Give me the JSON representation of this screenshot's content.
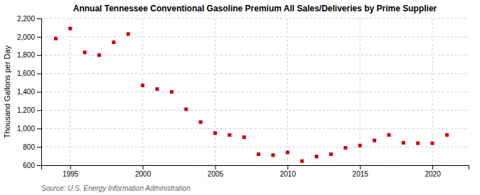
{
  "chart_data": {
    "type": "scatter",
    "title": "Annual Tennessee Conventional Gasoline Premium All Sales/Deliveries by Prime Supplier",
    "ylabel": "Thousand Gallons per Day",
    "source": "Source: U.S. Energy Information Administration",
    "x": [
      1994,
      1995,
      1996,
      1997,
      1998,
      1999,
      2000,
      2001,
      2002,
      2003,
      2004,
      2005,
      2006,
      2007,
      2008,
      2009,
      2010,
      2011,
      2012,
      2013,
      2014,
      2015,
      2016,
      2017,
      2018,
      2019,
      2020,
      2021
    ],
    "values": [
      1980,
      2090,
      1830,
      1800,
      1940,
      2030,
      1470,
      1430,
      1400,
      1210,
      1070,
      950,
      930,
      905,
      720,
      710,
      740,
      645,
      695,
      720,
      790,
      815,
      870,
      930,
      845,
      840,
      840,
      930
    ],
    "color": "#cc0000",
    "marker": "square",
    "xlim": [
      1993.0,
      2022.5
    ],
    "ylim": [
      600,
      2200
    ],
    "xticks": [
      1995,
      2000,
      2005,
      2010,
      2015,
      2020
    ],
    "yticks": [
      600,
      800,
      {
        "value": 1000,
        "label": "1,000"
      },
      {
        "value": 1200,
        "label": "1,200"
      },
      {
        "value": 1400,
        "label": "1,400"
      },
      {
        "value": 1600,
        "label": "1,600"
      },
      {
        "value": 1800,
        "label": "1,800"
      },
      {
        "value": 2000,
        "label": "2,000"
      },
      {
        "value": 2200,
        "label": "2,200"
      }
    ],
    "grid": true
  }
}
